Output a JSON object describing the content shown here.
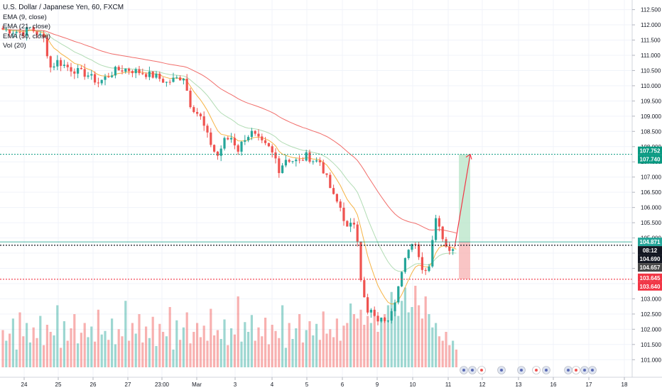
{
  "legend": {
    "title": "U.S. Dollar / Japanese Yen, 60, FXCM",
    "ema9": "EMA (9, close)",
    "ema21": "EMA (21, close)",
    "ema50": "EMA (50, close)",
    "vol": "Vol (20)"
  },
  "colors": {
    "up": "#26a69a",
    "down": "#ef5350",
    "ema9": "#f5a623",
    "ema21": "#a5d6a7",
    "ema50": "#ef5350",
    "target": "#089981",
    "stop": "#f23645",
    "current": "#131722",
    "grid": "#f0f3fa"
  },
  "chart_data": {
    "type": "candlestick",
    "symbol": "USDJPY",
    "interval": "60",
    "ylim": [
      100.75,
      112.7
    ],
    "price_ticks": [
      "101.000",
      "101.500",
      "102.000",
      "102.500",
      "103.000",
      "103.500",
      "104.000",
      "104.500",
      "105.000",
      "105.500",
      "106.000",
      "106.500",
      "107.000",
      "107.500",
      "108.000",
      "108.500",
      "109.000",
      "109.500",
      "110.000",
      "110.500",
      "111.000",
      "111.500",
      "112.000",
      "112.500"
    ],
    "x_ticks": [
      "24",
      "25",
      "26",
      "27",
      "23:00",
      "Mar",
      "3",
      "4",
      "5",
      "6",
      "9",
      "10",
      "11",
      "12",
      "13",
      "16",
      "17",
      "18"
    ],
    "price_labels": {
      "target_a": "107.752",
      "target_b": "107.740",
      "last": "104.871",
      "countdown": "08:12",
      "current": "104.690",
      "current_b": "104.657",
      "stop_a": "103.645",
      "stop_b": "103.640"
    },
    "levels": {
      "target": 107.746,
      "entry": 104.871,
      "current": 104.69,
      "stop": 103.643
    },
    "price_path": [
      [
        0,
        111.85
      ],
      [
        3,
        111.8
      ],
      [
        6,
        111.75
      ],
      [
        8,
        111.9
      ],
      [
        12,
        111.55
      ],
      [
        14,
        110.6
      ],
      [
        16,
        110.8
      ],
      [
        20,
        110.55
      ],
      [
        25,
        110.35
      ],
      [
        28,
        110.1
      ],
      [
        33,
        110.5
      ],
      [
        36,
        110.55
      ],
      [
        40,
        110.45
      ],
      [
        45,
        110.3
      ],
      [
        48,
        110.1
      ],
      [
        50,
        110.2
      ],
      [
        53,
        110.3
      ],
      [
        55,
        109.4
      ],
      [
        58,
        108.95
      ],
      [
        60,
        108.35
      ],
      [
        62,
        107.85
      ],
      [
        63,
        107.7
      ],
      [
        65,
        108.2
      ],
      [
        67,
        108.3
      ],
      [
        69,
        107.9
      ],
      [
        71,
        108.3
      ],
      [
        73,
        108.45
      ],
      [
        76,
        108.1
      ],
      [
        78,
        107.95
      ],
      [
        80,
        107.6
      ],
      [
        81,
        107.25
      ],
      [
        83,
        107.6
      ],
      [
        85,
        107.55
      ],
      [
        87,
        107.5
      ],
      [
        89,
        107.7
      ],
      [
        91,
        107.55
      ],
      [
        93,
        107.5
      ],
      [
        95,
        106.95
      ],
      [
        97,
        106.35
      ],
      [
        99,
        106.0
      ],
      [
        101,
        105.3
      ],
      [
        102,
        105.4
      ],
      [
        103,
        105.5
      ],
      [
        104,
        105.0
      ],
      [
        105,
        103.7
      ],
      [
        106,
        103.0
      ],
      [
        107,
        102.5
      ],
      [
        108,
        102.6
      ],
      [
        109,
        102.35
      ],
      [
        111,
        102.3
      ],
      [
        113,
        102.4
      ],
      [
        115,
        103.0
      ],
      [
        117,
        103.8
      ],
      [
        119,
        104.7
      ],
      [
        121,
        104.9
      ],
      [
        123,
        103.95
      ],
      [
        125,
        104.1
      ],
      [
        126,
        105.0
      ],
      [
        127,
        105.7
      ],
      [
        128,
        105.3
      ],
      [
        130,
        104.8
      ],
      [
        132,
        104.6
      ],
      [
        133,
        104.5
      ]
    ],
    "volume_profile": [
      0.42,
      0.3,
      0.38,
      0.55,
      0.2,
      0.62,
      0.35,
      0.5,
      0.28,
      0.45,
      0.33,
      0.58,
      0.25,
      0.48,
      0.4,
      0.36,
      0.7,
      0.22,
      0.52,
      0.3,
      0.44,
      0.6,
      0.27,
      0.39,
      0.5,
      0.34,
      0.46,
      0.29,
      0.65,
      0.37,
      0.41,
      0.31,
      0.55,
      0.26,
      0.43,
      0.35,
      0.75,
      0.3,
      0.5,
      0.38,
      0.6,
      0.28,
      0.46,
      0.33,
      0.57,
      0.24,
      0.49,
      0.4,
      0.35,
      0.68,
      0.2,
      0.53,
      0.31,
      0.45,
      0.62,
      0.27,
      0.4,
      0.5,
      0.34,
      0.47,
      0.3,
      0.66,
      0.36,
      0.42,
      0.32,
      0.54,
      0.25,
      0.44,
      0.37,
      0.8,
      0.29,
      0.51,
      0.4,
      0.59,
      0.3,
      0.45,
      0.35,
      0.56,
      0.26,
      0.48,
      0.41,
      0.33,
      0.7,
      0.22,
      0.5,
      0.32,
      0.44,
      0.6,
      0.28,
      0.42,
      0.52,
      0.36,
      0.49,
      0.31,
      0.63,
      0.38,
      0.43,
      0.34,
      0.55,
      0.3,
      0.47,
      0.5,
      0.72,
      0.6,
      0.55,
      0.65,
      0.48,
      0.58,
      0.5,
      0.62,
      0.4,
      0.54,
      0.6,
      0.7,
      0.85,
      0.66,
      0.58,
      0.75,
      0.9,
      0.62,
      0.68,
      0.92,
      0.7,
      0.55,
      0.8,
      0.6,
      0.45,
      0.5,
      0.35,
      0.3,
      0.4,
      0.25,
      0.3,
      0.2
    ]
  }
}
